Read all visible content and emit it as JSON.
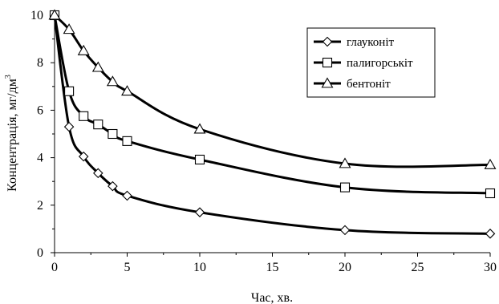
{
  "chart_data": {
    "type": "line",
    "xlabel": "Час, хв.",
    "ylabel": "Концентрація, мг/дм",
    "ylabel_sup": "3",
    "xlim": [
      0,
      30
    ],
    "ylim": [
      0,
      10
    ],
    "xticks": [
      0,
      5,
      10,
      15,
      20,
      25,
      30
    ],
    "yticks": [
      0,
      2,
      4,
      6,
      8,
      10
    ],
    "grid": false,
    "legend_position": "top-right",
    "series": [
      {
        "name": "глауконіт",
        "marker": "diamond",
        "x": [
          0,
          1,
          2,
          3,
          4,
          5,
          10,
          20,
          30
        ],
        "y": [
          10,
          5.3,
          4.05,
          3.35,
          2.8,
          2.4,
          1.7,
          0.95,
          0.8
        ]
      },
      {
        "name": "палигорськіт",
        "marker": "square",
        "x": [
          0,
          1,
          2,
          3,
          4,
          5,
          10,
          20,
          30
        ],
        "y": [
          10,
          6.8,
          5.75,
          5.4,
          5.0,
          4.7,
          3.92,
          2.75,
          2.5
        ]
      },
      {
        "name": "бентоніт",
        "marker": "triangle",
        "x": [
          0,
          1,
          2,
          3,
          4,
          5,
          10,
          20,
          30
        ],
        "y": [
          10,
          9.4,
          8.5,
          7.8,
          7.2,
          6.8,
          5.2,
          3.75,
          3.7
        ]
      }
    ]
  }
}
